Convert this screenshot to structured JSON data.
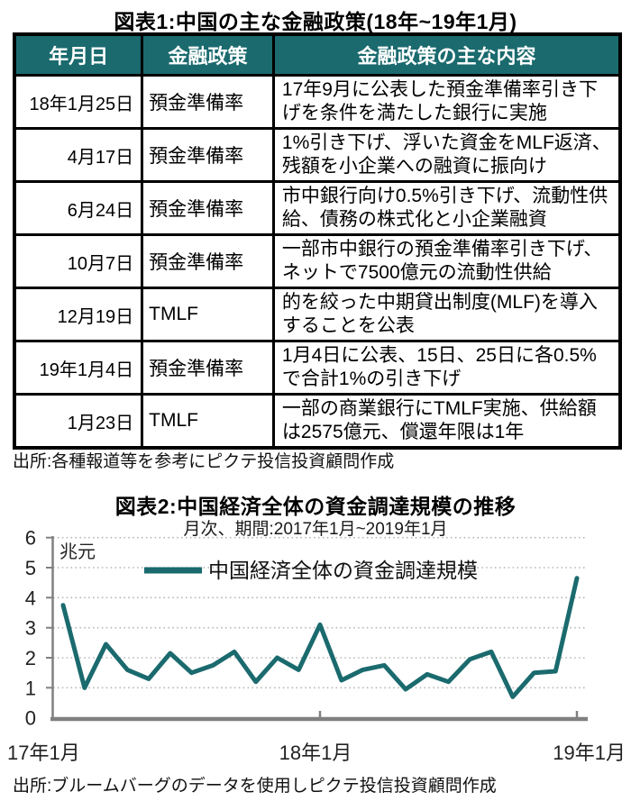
{
  "table1": {
    "title": "図表1:中国の主な金融政策(18年~19年1月)",
    "headers": [
      "年月日",
      "金融政策",
      "金融政策の主な内容"
    ],
    "rows": [
      {
        "date": "18年1月25日",
        "policy": "預金準備率",
        "detail": "17年9月に公表した預金準備率引き下げを条件を満たした銀行に実施"
      },
      {
        "date": "4月17日",
        "policy": "預金準備率",
        "detail": "1%引き下げ、浮いた資金をMLF返済、残額を小企業への融資に振向け"
      },
      {
        "date": "6月24日",
        "policy": "預金準備率",
        "detail": "市中銀行向け0.5%引き下げ、流動性供給、債務の株式化と小企業融資"
      },
      {
        "date": "10月7日",
        "policy": "預金準備率",
        "detail": "一部市中銀行の預金準備率引き下げ、ネットで7500億元の流動性供給"
      },
      {
        "date": "12月19日",
        "policy": "TMLF",
        "detail": "的を絞った中期貸出制度(MLF)を導入することを公表"
      },
      {
        "date": "19年1月4日",
        "policy": "預金準備率",
        "detail": "1月4日に公表、15日、25日に各0.5%で合計1%の引き下げ"
      },
      {
        "date": "1月23日",
        "policy": "TMLF",
        "detail": "一部の商業銀行にTMLF実施、供給額は2575億元、償還年限は1年"
      }
    ],
    "source": "出所:各種報道等を参考にピクテ投信投資顧問作成"
  },
  "chart": {
    "title": "図表2:中国経済全体の資金調達規模の推移",
    "subtitle": "月次、期間:2017年1月~2019年1月",
    "unit_label": "兆元",
    "legend": "中国経済全体の資金調達規模",
    "source": "出所:ブルームバーグのデータを使用しピクテ投信投資顧問作成",
    "accent_color": "#1A6A6E"
  },
  "chart_data": {
    "type": "line",
    "title": "図表2:中国経済全体の資金調達規模の推移",
    "subtitle": "月次、期間:2017年1月~2019年1月",
    "ylabel": "兆元",
    "ylim": [
      0,
      6
    ],
    "yticks": [
      0,
      1,
      2,
      3,
      4,
      5,
      6
    ],
    "xticklabels": [
      "17年1月",
      "18年1月",
      "19年1月"
    ],
    "grid": "horizontal-dotted",
    "legend_position": "top-center-inside",
    "line_color": "#1A6A6E",
    "months": [
      "2017-01",
      "2017-02",
      "2017-03",
      "2017-04",
      "2017-05",
      "2017-06",
      "2017-07",
      "2017-08",
      "2017-09",
      "2017-10",
      "2017-11",
      "2017-12",
      "2018-01",
      "2018-02",
      "2018-03",
      "2018-04",
      "2018-05",
      "2018-06",
      "2018-07",
      "2018-08",
      "2018-09",
      "2018-10",
      "2018-11",
      "2018-12",
      "2019-01"
    ],
    "series": [
      {
        "name": "中国経済全体の資金調達規模",
        "values": [
          3.75,
          1.0,
          2.45,
          1.6,
          1.3,
          2.15,
          1.5,
          1.75,
          2.2,
          1.2,
          2.0,
          1.6,
          3.1,
          1.25,
          1.6,
          1.75,
          0.95,
          1.45,
          1.2,
          1.95,
          2.2,
          0.7,
          1.5,
          1.55,
          4.65
        ]
      }
    ]
  }
}
